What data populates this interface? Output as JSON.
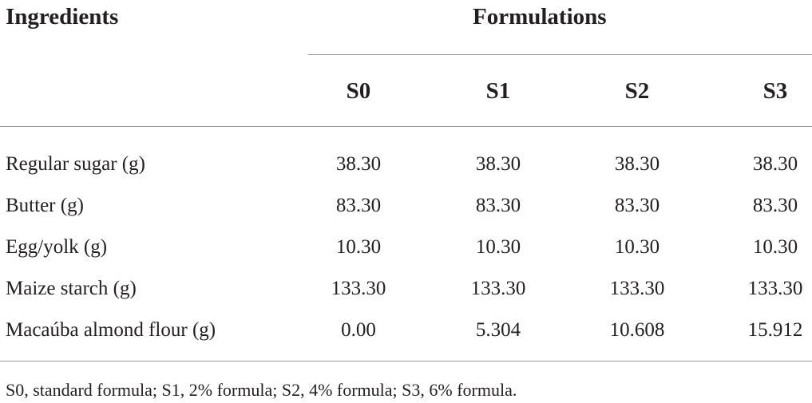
{
  "table": {
    "ingredients_header": "Ingredients",
    "formulations_header": "Formulations",
    "columns": [
      "S0",
      "S1",
      "S2",
      "S3"
    ],
    "rows": [
      {
        "label": "Regular sugar (g)",
        "values": [
          "38.30",
          "38.30",
          "38.30",
          "38.30"
        ]
      },
      {
        "label": "Butter (g)",
        "values": [
          "83.30",
          "83.30",
          "83.30",
          "83.30"
        ]
      },
      {
        "label": "Egg/yolk (g)",
        "values": [
          "10.30",
          "10.30",
          "10.30",
          "10.30"
        ]
      },
      {
        "label": "Maize starch (g)",
        "values": [
          "133.30",
          "133.30",
          "133.30",
          "133.30"
        ]
      },
      {
        "label": "Macaúba almond flour (g)",
        "values": [
          "0.00",
          "5.304",
          "10.608",
          "15.912"
        ]
      }
    ]
  },
  "footnote": "S0, standard formula; S1, 2% formula; S2, 4% formula; S3, 6% formula."
}
